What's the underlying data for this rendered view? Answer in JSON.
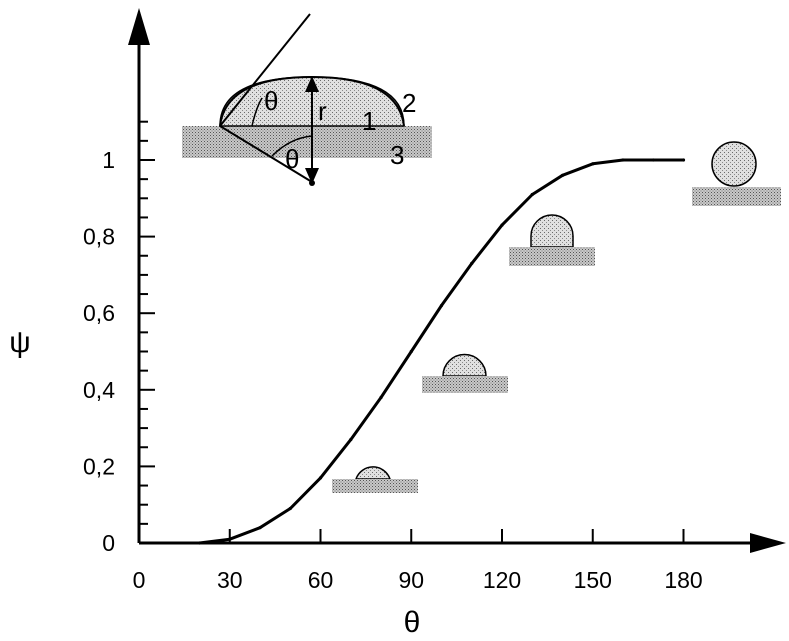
{
  "chart_data": {
    "type": "line",
    "xlabel": "θ",
    "ylabel": "ψ",
    "xlim": [
      0,
      200
    ],
    "ylim": [
      0,
      1.1
    ],
    "x_ticks": [
      "0",
      "30",
      "60",
      "90",
      "120",
      "150",
      "180"
    ],
    "y_ticks": [
      "0",
      "0,2",
      "0,4",
      "0,6",
      "0,8",
      "1"
    ],
    "series": [
      {
        "x": [
          20,
          30,
          40,
          50,
          60,
          70,
          80,
          90,
          100,
          110,
          120,
          130,
          140,
          150,
          160,
          170,
          180
        ],
        "y": [
          0.0,
          0.01,
          0.04,
          0.09,
          0.17,
          0.27,
          0.38,
          0.5,
          0.62,
          0.73,
          0.83,
          0.91,
          0.96,
          0.99,
          1.0,
          1.0,
          1.0
        ]
      }
    ],
    "grid": false,
    "legend": "none",
    "inset_labels": {
      "angle_top": "θ",
      "angle_bottom": "θ",
      "radius": "r",
      "phase_1": "1",
      "phase_2": "2",
      "phase_3": "3"
    },
    "colors": {
      "line": "#000000",
      "shade": "#cfcfcf",
      "surface": "#b5b5b5"
    }
  }
}
